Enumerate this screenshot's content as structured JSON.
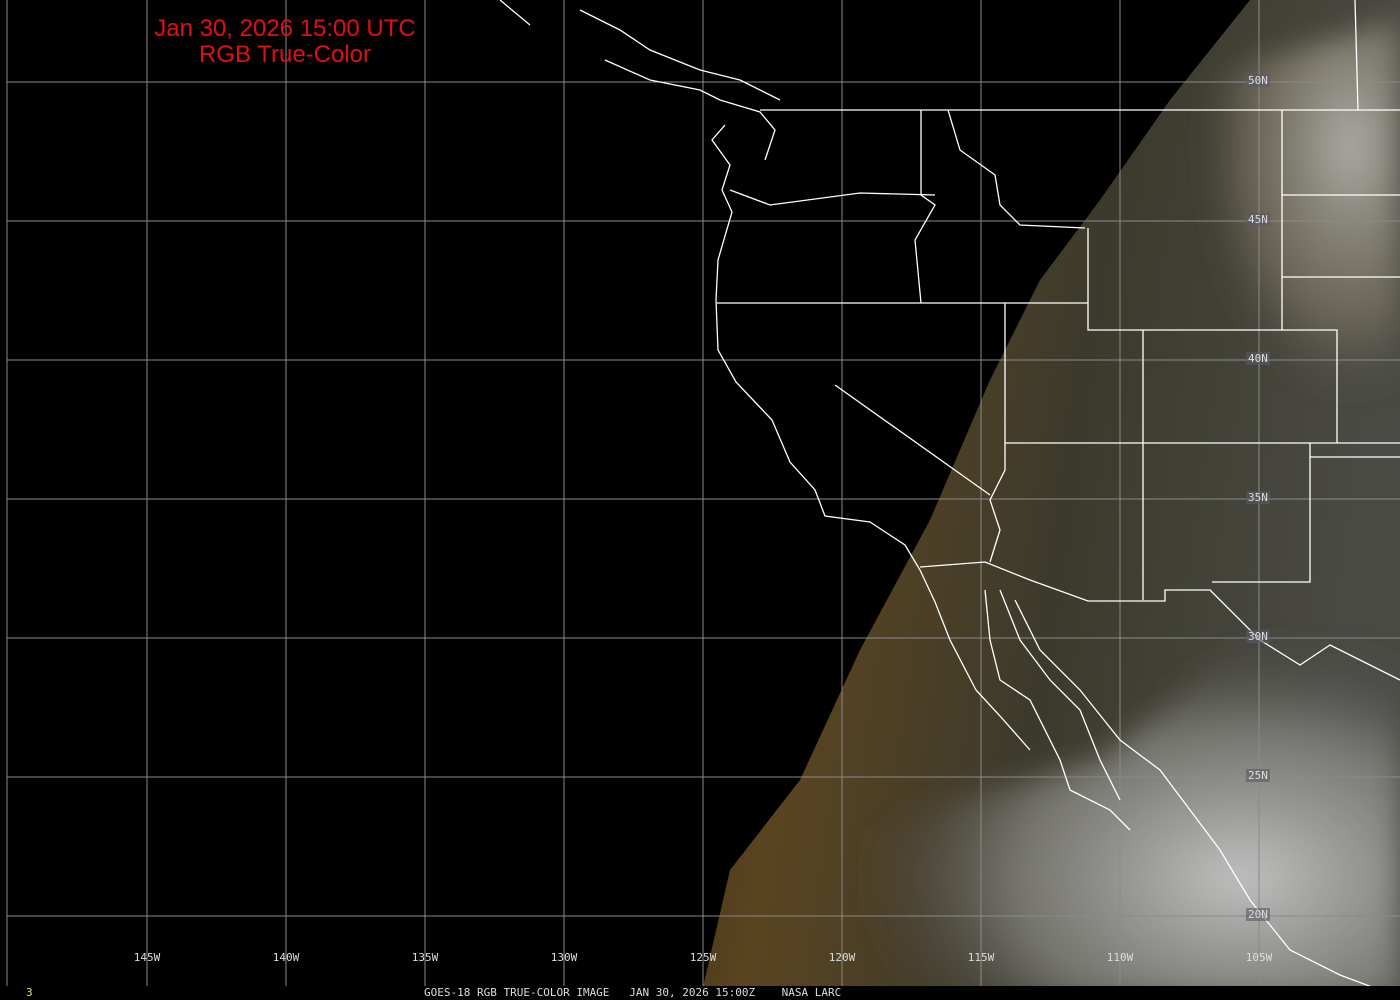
{
  "title": {
    "line1": "Jan 30, 2026 15:00 UTC",
    "line2": "RGB True-Color"
  },
  "longitude_labels": [
    "145W",
    "140W",
    "135W",
    "130W",
    "125W",
    "120W",
    "115W",
    "110W",
    "105W"
  ],
  "latitude_labels": [
    "50N",
    "45N",
    "40N",
    "35N",
    "30N",
    "25N",
    "20N"
  ],
  "footer": {
    "frame": "3",
    "caption": "GOES-18 RGB TRUE-COLOR IMAGE   JAN 30, 2026 15:00Z    NASA LARC"
  },
  "colors": {
    "title": "#e01010",
    "grid": "#8a8a8a",
    "borders": "#ffffff",
    "background": "#000000"
  }
}
